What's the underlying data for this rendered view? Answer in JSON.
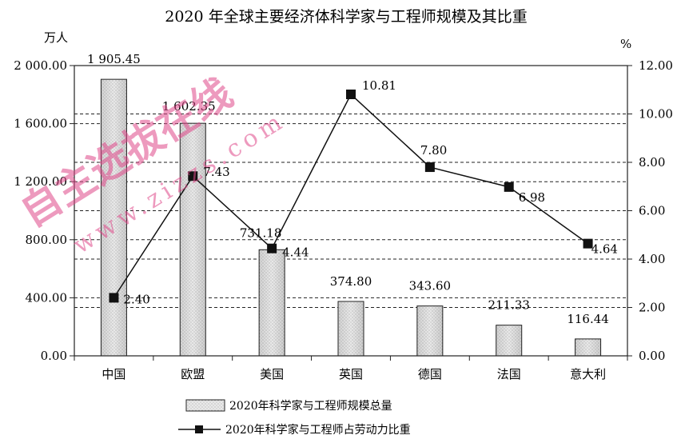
{
  "chart_data": {
    "type": "bar+line",
    "title": "2020 年全球主要经济体科学家与工程师规模及其比重",
    "y_left_unit": "万人",
    "y_right_unit": "%",
    "categories": [
      "中国",
      "欧盟",
      "美国",
      "英国",
      "德国",
      "法国",
      "意大利"
    ],
    "y_left_ticks": [
      "0.00",
      "400.00",
      "800.00",
      "1 200.00",
      "1 600.00",
      "2 000.00"
    ],
    "y_right_ticks": [
      "0.00",
      "2.00",
      "4.00",
      "6.00",
      "8.00",
      "10.00",
      "12.00"
    ],
    "ylim_left": [
      0,
      2000
    ],
    "ylim_right": [
      0,
      12
    ],
    "grid": "dashed horizontal",
    "legend_position": "bottom",
    "series": [
      {
        "name": "2020年科学家与工程师规模总量",
        "type": "bar",
        "axis": "left",
        "values": [
          1905.45,
          1602.35,
          731.18,
          374.8,
          343.6,
          211.33,
          116.44
        ],
        "labels": [
          "1 905.45",
          "1 602.35",
          "731.18",
          "374.80",
          "343.60",
          "211.33",
          "116.44"
        ]
      },
      {
        "name": "2020年科学家与工程师占劳动力比重",
        "type": "line",
        "axis": "right",
        "values": [
          2.4,
          7.43,
          4.44,
          10.81,
          7.8,
          6.98,
          4.64
        ],
        "labels": [
          "2.40",
          "7.43",
          "4.44",
          "10.81",
          "7.80",
          "6.98",
          "4.64"
        ]
      }
    ]
  },
  "watermark": {
    "text": "自主选拔在线",
    "url": "www.zizzs.com",
    "color": "#e0488a"
  }
}
